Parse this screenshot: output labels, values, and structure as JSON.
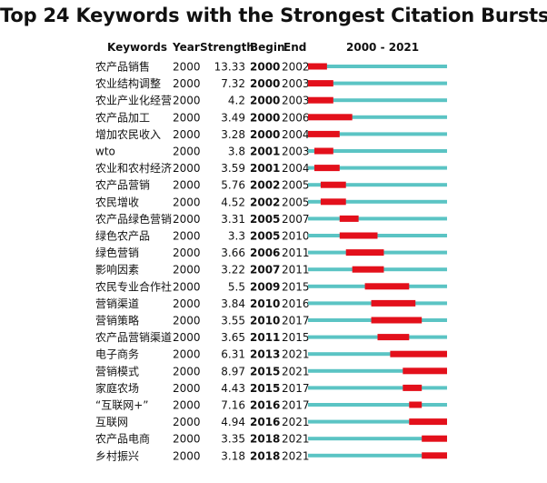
{
  "chart_data": {
    "type": "table",
    "title": "Top 24 Keywords with the Strongest Citation Bursts",
    "columns": [
      "Keywords",
      "Year",
      "Strength",
      "Begin",
      "End",
      "2000 - 2021"
    ],
    "range": [
      2000,
      2021
    ],
    "colors": {
      "burst": "#e3101b",
      "timeline": "#5bc4c4"
    },
    "rows": [
      {
        "keyword": "农产品销售",
        "year": "2000",
        "strength": "13.33",
        "begin": "2000",
        "end": "2002"
      },
      {
        "keyword": "农业结构调整",
        "year": "2000",
        "strength": "7.32",
        "begin": "2000",
        "end": "2003"
      },
      {
        "keyword": "农业产业化经营",
        "year": "2000",
        "strength": "4.2",
        "begin": "2000",
        "end": "2003"
      },
      {
        "keyword": "农产品加工",
        "year": "2000",
        "strength": "3.49",
        "begin": "2000",
        "end": "2006"
      },
      {
        "keyword": "增加农民收入",
        "year": "2000",
        "strength": "3.28",
        "begin": "2000",
        "end": "2004"
      },
      {
        "keyword": "wto",
        "year": "2000",
        "strength": "3.8",
        "begin": "2001",
        "end": "2003"
      },
      {
        "keyword": "农业和农村经济",
        "year": "2000",
        "strength": "3.59",
        "begin": "2001",
        "end": "2004"
      },
      {
        "keyword": "农产品营销",
        "year": "2000",
        "strength": "5.76",
        "begin": "2002",
        "end": "2005"
      },
      {
        "keyword": "农民增收",
        "year": "2000",
        "strength": "4.52",
        "begin": "2002",
        "end": "2005"
      },
      {
        "keyword": "农产品绿色营销",
        "year": "2000",
        "strength": "3.31",
        "begin": "2005",
        "end": "2007"
      },
      {
        "keyword": "绿色农产品",
        "year": "2000",
        "strength": "3.3",
        "begin": "2005",
        "end": "2010"
      },
      {
        "keyword": "绿色营销",
        "year": "2000",
        "strength": "3.66",
        "begin": "2006",
        "end": "2011"
      },
      {
        "keyword": "影响因素",
        "year": "2000",
        "strength": "3.22",
        "begin": "2007",
        "end": "2011"
      },
      {
        "keyword": "农民专业合作社",
        "year": "2000",
        "strength": "5.5",
        "begin": "2009",
        "end": "2015"
      },
      {
        "keyword": "营销渠道",
        "year": "2000",
        "strength": "3.84",
        "begin": "2010",
        "end": "2016"
      },
      {
        "keyword": "营销策略",
        "year": "2000",
        "strength": "3.55",
        "begin": "2010",
        "end": "2017"
      },
      {
        "keyword": "农产品营销渠道",
        "year": "2000",
        "strength": "3.65",
        "begin": "2011",
        "end": "2015"
      },
      {
        "keyword": "电子商务",
        "year": "2000",
        "strength": "6.31",
        "begin": "2013",
        "end": "2021"
      },
      {
        "keyword": "营销模式",
        "year": "2000",
        "strength": "8.97",
        "begin": "2015",
        "end": "2021"
      },
      {
        "keyword": "家庭农场",
        "year": "2000",
        "strength": "4.43",
        "begin": "2015",
        "end": "2017"
      },
      {
        "keyword": "“互联网+”",
        "year": "2000",
        "strength": "7.16",
        "begin": "2016",
        "end": "2017"
      },
      {
        "keyword": "互联网",
        "year": "2000",
        "strength": "4.94",
        "begin": "2016",
        "end": "2021"
      },
      {
        "keyword": "农产品电商",
        "year": "2000",
        "strength": "3.35",
        "begin": "2018",
        "end": "2021"
      },
      {
        "keyword": "乡村振兴",
        "year": "2000",
        "strength": "3.18",
        "begin": "2018",
        "end": "2021"
      }
    ]
  }
}
